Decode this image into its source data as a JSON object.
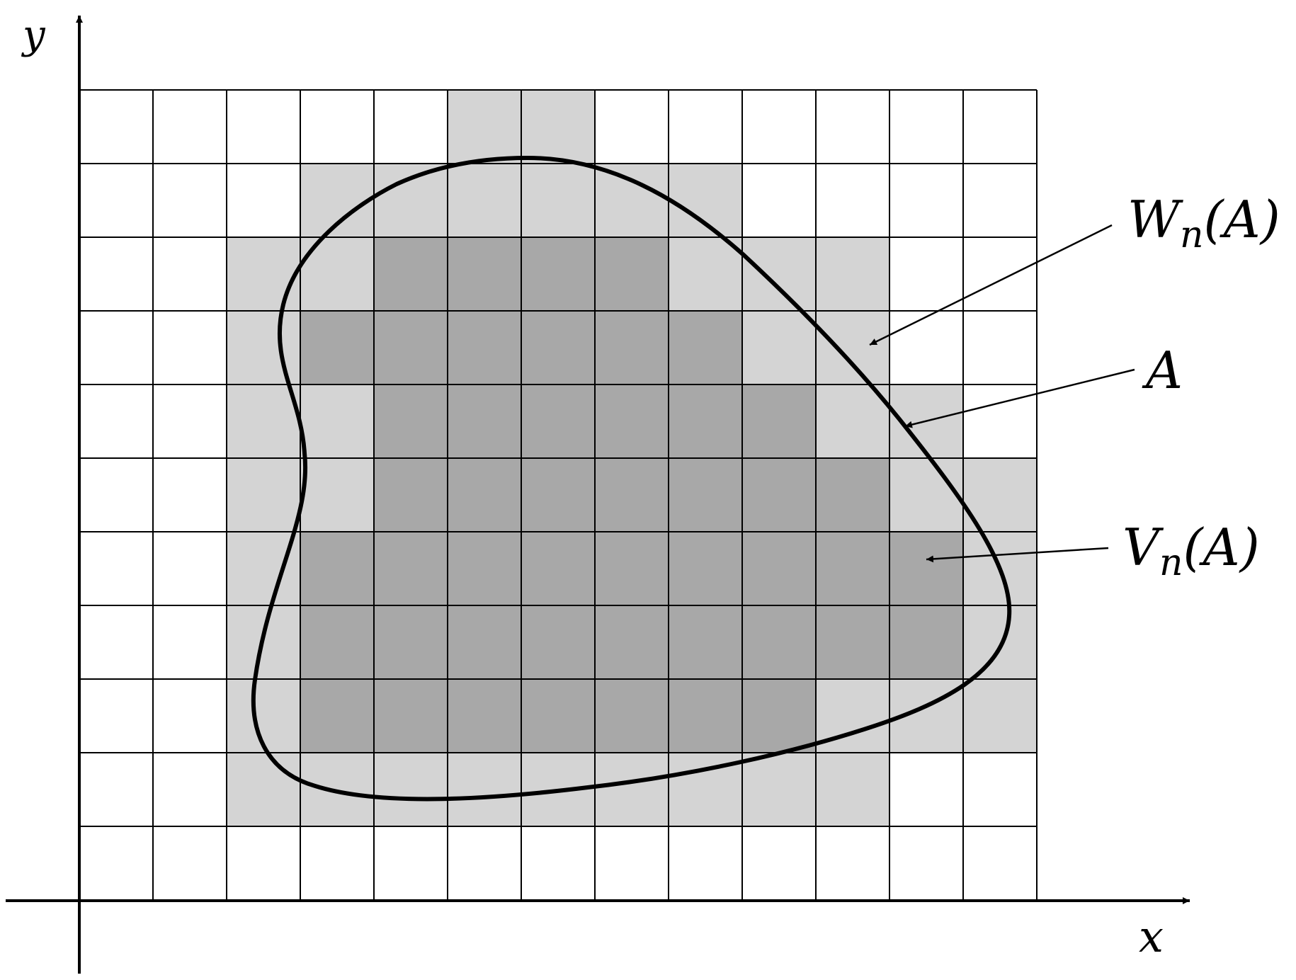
{
  "axes": {
    "x_label": "x",
    "y_label": "y"
  },
  "grid": {
    "columns": 13,
    "rows": 11
  },
  "legend": {
    "outer_set": {
      "name": "W",
      "sub": "n",
      "arg": "(A)"
    },
    "region": {
      "name": "A"
    },
    "inner_set": {
      "name": "V",
      "sub": "n",
      "arg": "(A)"
    }
  },
  "inner_cells": [
    [
      4,
      2
    ],
    [
      5,
      2
    ],
    [
      6,
      2
    ],
    [
      7,
      2
    ],
    [
      3,
      3
    ],
    [
      4,
      3
    ],
    [
      5,
      3
    ],
    [
      6,
      3
    ],
    [
      7,
      3
    ],
    [
      8,
      3
    ],
    [
      4,
      4
    ],
    [
      5,
      4
    ],
    [
      6,
      4
    ],
    [
      7,
      4
    ],
    [
      8,
      4
    ],
    [
      9,
      4
    ],
    [
      4,
      5
    ],
    [
      5,
      5
    ],
    [
      6,
      5
    ],
    [
      7,
      5
    ],
    [
      8,
      5
    ],
    [
      9,
      5
    ],
    [
      10,
      5
    ],
    [
      3,
      6
    ],
    [
      4,
      6
    ],
    [
      5,
      6
    ],
    [
      6,
      6
    ],
    [
      7,
      6
    ],
    [
      8,
      6
    ],
    [
      9,
      6
    ],
    [
      10,
      6
    ],
    [
      11,
      6
    ],
    [
      3,
      7
    ],
    [
      4,
      7
    ],
    [
      5,
      7
    ],
    [
      6,
      7
    ],
    [
      7,
      7
    ],
    [
      8,
      7
    ],
    [
      9,
      7
    ],
    [
      10,
      7
    ],
    [
      11,
      7
    ],
    [
      3,
      8
    ],
    [
      4,
      8
    ],
    [
      5,
      8
    ],
    [
      6,
      8
    ],
    [
      7,
      8
    ],
    [
      8,
      8
    ],
    [
      9,
      8
    ]
  ],
  "outer_cells": [
    [
      5,
      0
    ],
    [
      6,
      0
    ],
    [
      3,
      1
    ],
    [
      4,
      1
    ],
    [
      5,
      1
    ],
    [
      6,
      1
    ],
    [
      7,
      1
    ],
    [
      8,
      1
    ],
    [
      2,
      2
    ],
    [
      3,
      2
    ],
    [
      8,
      2
    ],
    [
      9,
      2
    ],
    [
      10,
      2
    ],
    [
      2,
      3
    ],
    [
      9,
      3
    ],
    [
      10,
      3
    ],
    [
      2,
      4
    ],
    [
      3,
      4
    ],
    [
      10,
      4
    ],
    [
      11,
      4
    ],
    [
      2,
      5
    ],
    [
      3,
      5
    ],
    [
      11,
      5
    ],
    [
      12,
      5
    ],
    [
      2,
      6
    ],
    [
      12,
      6
    ],
    [
      2,
      7
    ],
    [
      12,
      7
    ],
    [
      2,
      8
    ],
    [
      10,
      8
    ],
    [
      11,
      8
    ],
    [
      12,
      8
    ],
    [
      2,
      9
    ],
    [
      3,
      9
    ],
    [
      4,
      9
    ],
    [
      5,
      9
    ],
    [
      6,
      9
    ],
    [
      7,
      9
    ],
    [
      8,
      9
    ],
    [
      9,
      9
    ],
    [
      10,
      9
    ]
  ],
  "colors": {
    "outer_fill": "#d4d4d4",
    "inner_fill": "#a8a8a8",
    "line": "#000000",
    "background": "#ffffff"
  }
}
